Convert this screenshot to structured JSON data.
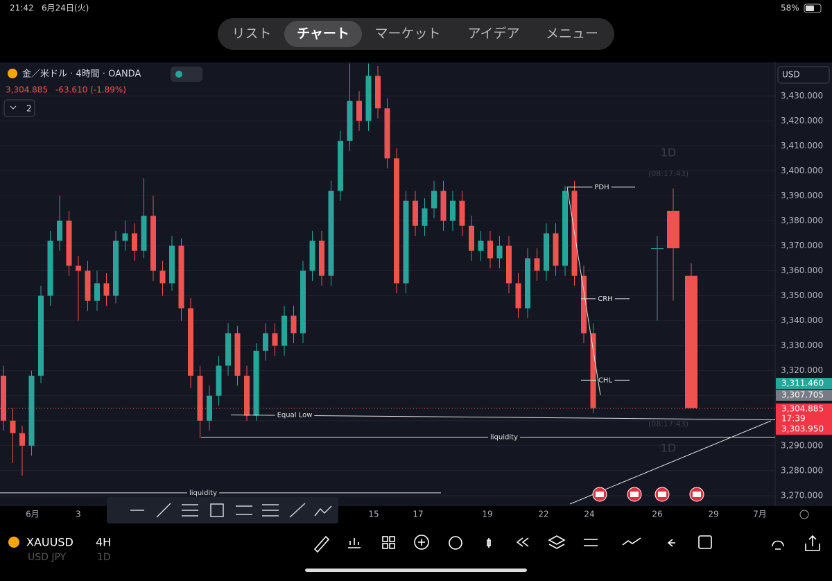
{
  "status": {
    "time": "21:42",
    "date": "6月24日(火)",
    "battery": "58%"
  },
  "tabs": [
    "リスト",
    "チャート",
    "マーケット",
    "アイデア",
    "メニュー"
  ],
  "legend": {
    "symbol": "金／米ドル · 4時間 · OANDA",
    "price": "3,304.885",
    "change": "-63.610 (-1.89%)",
    "count": "2"
  },
  "currency": "USD",
  "chart_data": {
    "type": "candlestick",
    "ylim": [
      3265.8,
      3443.4
    ],
    "yticks": [
      {
        "value": 3270,
        "label": "3,270.000"
      },
      {
        "value": 3280,
        "label": "3,280.000"
      },
      {
        "value": 3290,
        "label": "3,290.000"
      },
      {
        "value": 3300,
        "label": "3,300.000"
      },
      {
        "value": 3310,
        "label": "3,310.000"
      },
      {
        "value": 3320,
        "label": "3,320.000"
      },
      {
        "value": 3330,
        "label": "3,330.000"
      },
      {
        "value": 3340,
        "label": "3,340.000"
      },
      {
        "value": 3350,
        "label": "3,350.000"
      },
      {
        "value": 3360,
        "label": "3,360.000"
      },
      {
        "value": 3370,
        "label": "3,370.000"
      },
      {
        "value": 3380,
        "label": "3,380.000"
      },
      {
        "value": 3390,
        "label": "3,390.000"
      },
      {
        "value": 3400,
        "label": "3,400.000"
      },
      {
        "value": 3410,
        "label": "3,410.000"
      },
      {
        "value": 3420,
        "label": "3,420.000"
      },
      {
        "value": 3430,
        "label": "3,430.000"
      }
    ],
    "xlabels": [
      "6月",
      "3",
      "15",
      "17",
      "19",
      "22",
      "24",
      "26",
      "29",
      "7月"
    ],
    "up_color": "#26a69a",
    "down_color": "#ef5350",
    "candles": [
      [
        3318,
        3322,
        3296,
        3300
      ],
      [
        3300,
        3305,
        3283,
        3295
      ],
      [
        3295,
        3298,
        3278,
        3290
      ],
      [
        3290,
        3320,
        3286,
        3318
      ],
      [
        3318,
        3354,
        3315,
        3350
      ],
      [
        3350,
        3376,
        3346,
        3372
      ],
      [
        3372,
        3390,
        3368,
        3380
      ],
      [
        3380,
        3384,
        3358,
        3362
      ],
      [
        3362,
        3366,
        3340,
        3360
      ],
      [
        3360,
        3364,
        3344,
        3348
      ],
      [
        3348,
        3360,
        3344,
        3355
      ],
      [
        3355,
        3359,
        3346,
        3350
      ],
      [
        3350,
        3376,
        3347,
        3372
      ],
      [
        3372,
        3380,
        3368,
        3375
      ],
      [
        3375,
        3379,
        3364,
        3368
      ],
      [
        3368,
        3397,
        3365,
        3382
      ],
      [
        3382,
        3390,
        3356,
        3360
      ],
      [
        3360,
        3364,
        3350,
        3355
      ],
      [
        3355,
        3374,
        3352,
        3370
      ],
      [
        3370,
        3373,
        3340,
        3345
      ],
      [
        3345,
        3349,
        3313,
        3318
      ],
      [
        3318,
        3322,
        3293,
        3300
      ],
      [
        3300,
        3314,
        3296,
        3310
      ],
      [
        3310,
        3326,
        3306,
        3322
      ],
      [
        3322,
        3339,
        3318,
        3335
      ],
      [
        3335,
        3338,
        3314,
        3318
      ],
      [
        3318,
        3322,
        3300,
        3302
      ],
      [
        3302,
        3331,
        3300,
        3328
      ],
      [
        3328,
        3339,
        3324,
        3335
      ],
      [
        3335,
        3339,
        3326,
        3330
      ],
      [
        3330,
        3346,
        3326,
        3342
      ],
      [
        3342,
        3346,
        3331,
        3335
      ],
      [
        3335,
        3364,
        3331,
        3360
      ],
      [
        3360,
        3376,
        3356,
        3372
      ],
      [
        3372,
        3376,
        3354,
        3358
      ],
      [
        3358,
        3396,
        3354,
        3392
      ],
      [
        3392,
        3416,
        3388,
        3412
      ],
      [
        3412,
        3443,
        3408,
        3428
      ],
      [
        3428,
        3432,
        3416,
        3420
      ],
      [
        3420,
        3443,
        3416,
        3438
      ],
      [
        3438,
        3442,
        3421,
        3425
      ],
      [
        3425,
        3429,
        3401,
        3405
      ],
      [
        3405,
        3409,
        3351,
        3355
      ],
      [
        3355,
        3392,
        3351,
        3388
      ],
      [
        3388,
        3392,
        3374,
        3378
      ],
      [
        3378,
        3389,
        3374,
        3385
      ],
      [
        3385,
        3396,
        3381,
        3392
      ],
      [
        3392,
        3396,
        3376,
        3380
      ],
      [
        3380,
        3392,
        3376,
        3388
      ],
      [
        3388,
        3392,
        3374,
        3378
      ],
      [
        3378,
        3382,
        3364,
        3368
      ],
      [
        3368,
        3376,
        3364,
        3372
      ],
      [
        3372,
        3376,
        3361,
        3365
      ],
      [
        3365,
        3374,
        3361,
        3370
      ],
      [
        3370,
        3374,
        3351,
        3355
      ],
      [
        3355,
        3359,
        3341,
        3345
      ],
      [
        3345,
        3369,
        3341,
        3365
      ],
      [
        3365,
        3369,
        3356,
        3360
      ],
      [
        3360,
        3379,
        3356,
        3375
      ],
      [
        3375,
        3379,
        3358,
        3362
      ],
      [
        3362,
        3394,
        3358,
        3392
      ],
      [
        3392,
        3396,
        3354,
        3358
      ],
      [
        3358,
        3362,
        3331,
        3335
      ],
      [
        3335,
        3339,
        3303,
        3305
      ]
    ],
    "daily_candles": [
      [
        3369,
        3374,
        3340,
        3369
      ],
      [
        3384,
        3393,
        3348,
        3369
      ],
      [
        3358,
        3363,
        3305,
        3305
      ]
    ],
    "daily_label": "1D",
    "daily_times": [
      "(08:17:43)",
      "(08:17:43)"
    ],
    "levels": [
      {
        "name": "PDH",
        "value": 3393.5
      },
      {
        "name": "CRH",
        "value": 3348.8
      },
      {
        "name": "CHL",
        "value": 3316.2
      },
      {
        "name": "Equal Low",
        "value": 3302.3
      },
      {
        "name": "liquidity",
        "value": 3293.4
      },
      {
        "name": "liquidity",
        "value": 3271.1
      }
    ],
    "price_tags": [
      {
        "label": "3,311.460",
        "value": 3311.46,
        "color": "#26a69a"
      },
      {
        "label": "3,307.705",
        "value": 3307.705,
        "color": "#787b86"
      },
      {
        "label": "3,304.885",
        "value": 3304.885,
        "color": "#f23645",
        "countdown": "17:39"
      },
      {
        "label": "3,303.950",
        "value": 3303.95,
        "color": "#f23645"
      }
    ]
  },
  "bottom": {
    "symbol": "XAUUSD",
    "interval": "4H",
    "ghost_symbol": "USD JPY",
    "ghost_interval": "1D"
  }
}
